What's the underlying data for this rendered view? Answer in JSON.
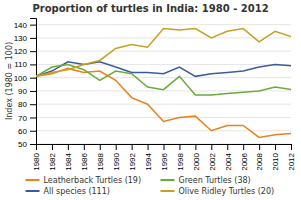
{
  "chart_data": {
    "type": "line",
    "title": "Proportion of turtles in India: 1980 - 2012",
    "ylabel": "Index (1980 = 100)",
    "x": [
      1980,
      1982,
      1984,
      1986,
      1988,
      1990,
      1992,
      1994,
      1996,
      1998,
      2000,
      2002,
      2004,
      2006,
      2008,
      2010,
      2012
    ],
    "series": [
      {
        "name": "Leatherback Turtles (19)",
        "color": "#E8821A",
        "values": [
          101,
          103,
          107,
          104,
          105,
          98,
          85,
          80,
          67,
          70,
          71,
          60,
          64,
          64,
          55,
          57,
          58
        ]
      },
      {
        "name": "All species (111)",
        "color": "#3A5BA0",
        "values": [
          101,
          105,
          112,
          110,
          112,
          108,
          104,
          104,
          103,
          108,
          101,
          103,
          104,
          105,
          108,
          110,
          109
        ]
      },
      {
        "name": "Green Turtles (38)",
        "color": "#6AAB3B",
        "values": [
          101,
          108,
          110,
          106,
          98,
          105,
          103,
          93,
          91,
          101,
          87,
          87,
          88,
          89,
          90,
          93,
          91
        ]
      },
      {
        "name": "Olive Ridley Turtles (20)",
        "color": "#C8A020",
        "values": [
          101,
          104,
          106,
          110,
          113,
          122,
          125,
          123,
          137,
          136,
          137,
          130,
          135,
          137,
          127,
          135,
          131
        ]
      }
    ],
    "xlim": [
      1980,
      2012
    ],
    "xticks": [
      1980,
      1982,
      1984,
      1986,
      1988,
      1990,
      1992,
      1994,
      1996,
      1998,
      2000,
      2002,
      2004,
      2006,
      2008,
      2010,
      2012
    ],
    "ylim": [
      50,
      145
    ],
    "yticks": [
      50,
      60,
      70,
      80,
      90,
      100,
      110,
      120,
      130,
      140
    ],
    "grid": true,
    "legend": "bottom"
  }
}
